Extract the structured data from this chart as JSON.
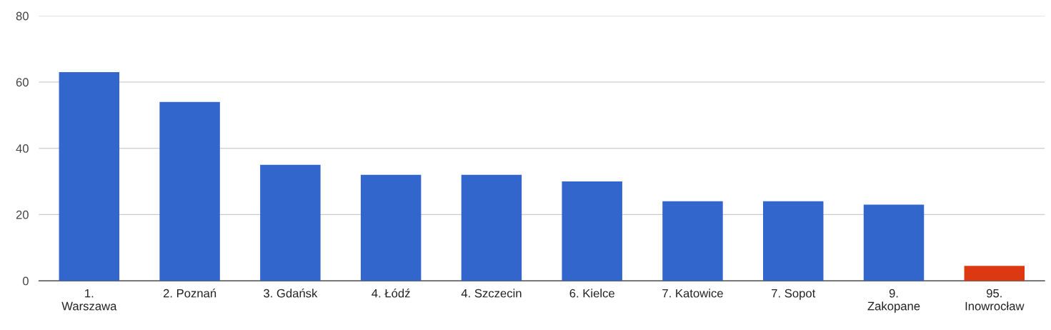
{
  "chart_data": {
    "type": "bar",
    "categories": [
      "1.\nWarszawa",
      "2. Poznań",
      "3. Gdańsk",
      "4. Łódź",
      "4. Szczecin",
      "6. Kielce",
      "7. Katowice",
      "7. Sopot",
      "9.\nZakopane",
      "95.\nInowrocław"
    ],
    "values": [
      63,
      54,
      35,
      32,
      32,
      30,
      24,
      24,
      23,
      4.5
    ],
    "colors": [
      "#3366cc",
      "#3366cc",
      "#3366cc",
      "#3366cc",
      "#3366cc",
      "#3366cc",
      "#3366cc",
      "#3366cc",
      "#3366cc",
      "#dc3912"
    ],
    "ylim": [
      0,
      80
    ],
    "yticks": [
      0,
      20,
      40,
      60,
      80
    ],
    "grid": "y"
  }
}
